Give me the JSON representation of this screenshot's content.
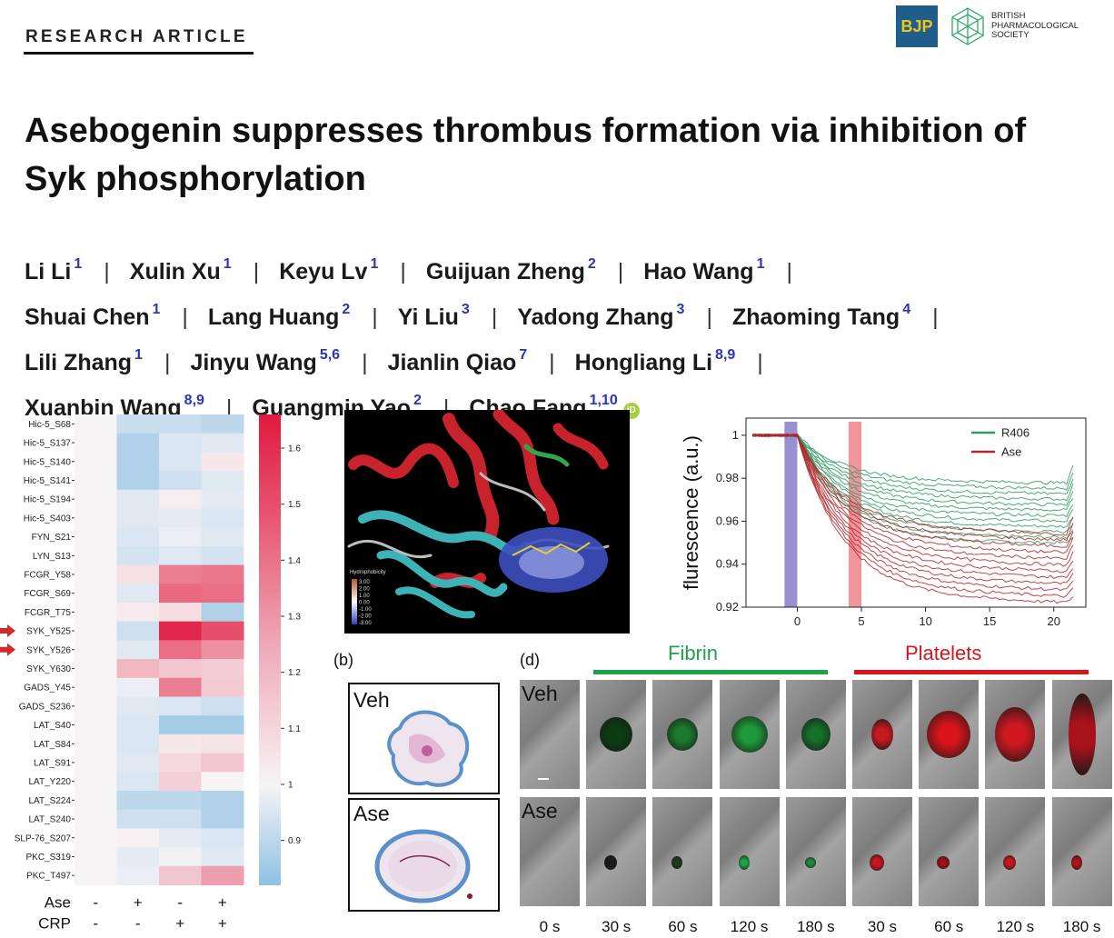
{
  "header": {
    "section_label": "RESEARCH ARTICLE",
    "journal_short": "BJP",
    "society_name": "BRITISH PHARMACOLOGICAL SOCIETY",
    "brand_colors": {
      "bjp_bg": "#1f5d8a",
      "bjp_text": "#f0c419",
      "society_green": "#2fa86b"
    }
  },
  "title_line1": "Asebogenin suppresses thrombus formation via inhibition of",
  "title_line2": "Syk phosphorylation",
  "authors": [
    [
      {
        "name": "Li Li",
        "sup": "1"
      },
      {
        "name": "Xulin Xu",
        "sup": "1"
      },
      {
        "name": "Keyu Lv",
        "sup": "1"
      },
      {
        "name": "Guijuan Zheng",
        "sup": "2"
      },
      {
        "name": "Hao Wang",
        "sup": "1"
      }
    ],
    [
      {
        "name": "Shuai Chen",
        "sup": "1"
      },
      {
        "name": "Lang Huang",
        "sup": "2"
      },
      {
        "name": "Yi Liu",
        "sup": "3"
      },
      {
        "name": "Yadong Zhang",
        "sup": "3"
      },
      {
        "name": "Zhaoming Tang",
        "sup": "4"
      }
    ],
    [
      {
        "name": "Lili Zhang",
        "sup": "1"
      },
      {
        "name": "Jinyu Wang",
        "sup": "5,6"
      },
      {
        "name": "Jianlin Qiao",
        "sup": "7"
      },
      {
        "name": "Hongliang Li",
        "sup": "8,9"
      }
    ],
    [
      {
        "name": "Xuanbin Wang",
        "sup": "8,9"
      },
      {
        "name": "Guangmin Yao",
        "sup": "2"
      },
      {
        "name": "Chao Fang",
        "sup": "1,10"
      }
    ]
  ],
  "orcid_label": "iD",
  "figure": {
    "b_label": "(b)",
    "d_label": "(d)",
    "veh": "Veh",
    "ase": "Ase",
    "fibrin": "Fibrin",
    "platelets": "Platelets",
    "fibrin_color": "#1fa34a",
    "platelets_color": "#d6161c",
    "times": [
      "0 s",
      "30 s",
      "60 s",
      "120 s",
      "180 s",
      "30 s",
      "60 s",
      "120 s",
      "180 s"
    ],
    "hydrophobicity_label": "Hydrophobicity",
    "hydro_ticks": [
      "3.00",
      "2.00",
      "1.00",
      "0.00",
      "-1.00",
      "-2.00",
      "-3.00"
    ]
  },
  "chart_data": [
    {
      "type": "heatmap",
      "rows": [
        "Hic-5_S68",
        "Hic-5_S137",
        "Hic-5_S140",
        "Hic-5_S141",
        "Hic-5_S194",
        "Hic-5_S403",
        "FYN_S21",
        "LYN_S13",
        "FCGR_Y58",
        "FCGR_S69",
        "FCGR_T75",
        "SYK_Y525",
        "SYK_Y526",
        "SYK_Y630",
        "GADS_Y45",
        "GADS_S236",
        "LAT_S40",
        "LAT_S84",
        "LAT_S91",
        "LAT_Y220",
        "LAT_S224",
        "LAT_S240",
        "SLP-76_S207",
        "PKC_S319",
        "PKC_T497"
      ],
      "highlighted_rows": [
        "SYK_Y525",
        "SYK_Y526"
      ],
      "columns": [
        {
          "Ase": "-",
          "CRP": "-"
        },
        {
          "Ase": "+",
          "CRP": "-"
        },
        {
          "Ase": "-",
          "CRP": "+"
        },
        {
          "Ase": "+",
          "CRP": "+"
        }
      ],
      "row_labels": [
        "Ase",
        "CRP"
      ],
      "values": [
        [
          1.0,
          0.92,
          0.92,
          0.9
        ],
        [
          1.0,
          0.88,
          0.95,
          0.96
        ],
        [
          1.0,
          0.88,
          0.95,
          1.04
        ],
        [
          1.0,
          0.88,
          0.93,
          0.96
        ],
        [
          1.0,
          0.96,
          1.02,
          0.97
        ],
        [
          1.0,
          0.96,
          0.97,
          0.95
        ],
        [
          1.0,
          0.95,
          0.98,
          0.96
        ],
        [
          1.0,
          0.94,
          0.96,
          0.94
        ],
        [
          1.0,
          1.06,
          1.36,
          1.38
        ],
        [
          1.0,
          0.96,
          1.42,
          1.4
        ],
        [
          1.0,
          1.03,
          1.07,
          0.88
        ],
        [
          1.0,
          0.93,
          1.62,
          1.5
        ],
        [
          1.0,
          0.96,
          1.4,
          1.3
        ],
        [
          1.0,
          1.18,
          1.14,
          1.12
        ],
        [
          1.0,
          0.98,
          1.36,
          1.13
        ],
        [
          1.0,
          0.96,
          0.95,
          0.93
        ],
        [
          1.0,
          0.95,
          0.86,
          0.86
        ],
        [
          1.0,
          0.95,
          1.04,
          1.05
        ],
        [
          1.0,
          0.96,
          1.08,
          1.14
        ],
        [
          1.0,
          0.95,
          1.11,
          1.0
        ],
        [
          1.0,
          0.9,
          0.9,
          0.88
        ],
        [
          1.0,
          0.93,
          0.93,
          0.88
        ],
        [
          1.0,
          1.01,
          0.97,
          0.95
        ],
        [
          1.0,
          0.97,
          0.99,
          0.96
        ],
        [
          1.0,
          0.98,
          1.14,
          1.26
        ]
      ],
      "colorbar_ticks": [
        1.6,
        1.5,
        1.4,
        1.3,
        1.2,
        1.1,
        1.0,
        0.9
      ],
      "vmin": 0.82,
      "vmax": 1.66,
      "colors": {
        "low": "#8ec0e3",
        "mid": "#f7f4f6",
        "high": "#e1193e"
      }
    },
    {
      "type": "line",
      "ylabel": "flurescence (a.u.)",
      "xticks": [
        0,
        5,
        10,
        15,
        20
      ],
      "yticks": [
        1.0,
        0.98,
        0.96,
        0.94,
        0.92
      ],
      "xlim": [
        -4,
        22.5
      ],
      "ylim": [
        0.92,
        1.008
      ],
      "bands": [
        {
          "x0": -1,
          "x1": 0,
          "color": "#8e84cc"
        },
        {
          "x0": 4,
          "x1": 5,
          "color": "#f08a92"
        }
      ],
      "legend_position": "top-right",
      "series": [
        {
          "name": "R406",
          "color": "#2e9b62",
          "count": 12,
          "plateau_range": [
            0.951,
            0.979
          ]
        },
        {
          "name": "Ase",
          "color": "#b3262c",
          "count": 12,
          "plateau_range": [
            0.926,
            0.958
          ]
        }
      ]
    }
  ]
}
